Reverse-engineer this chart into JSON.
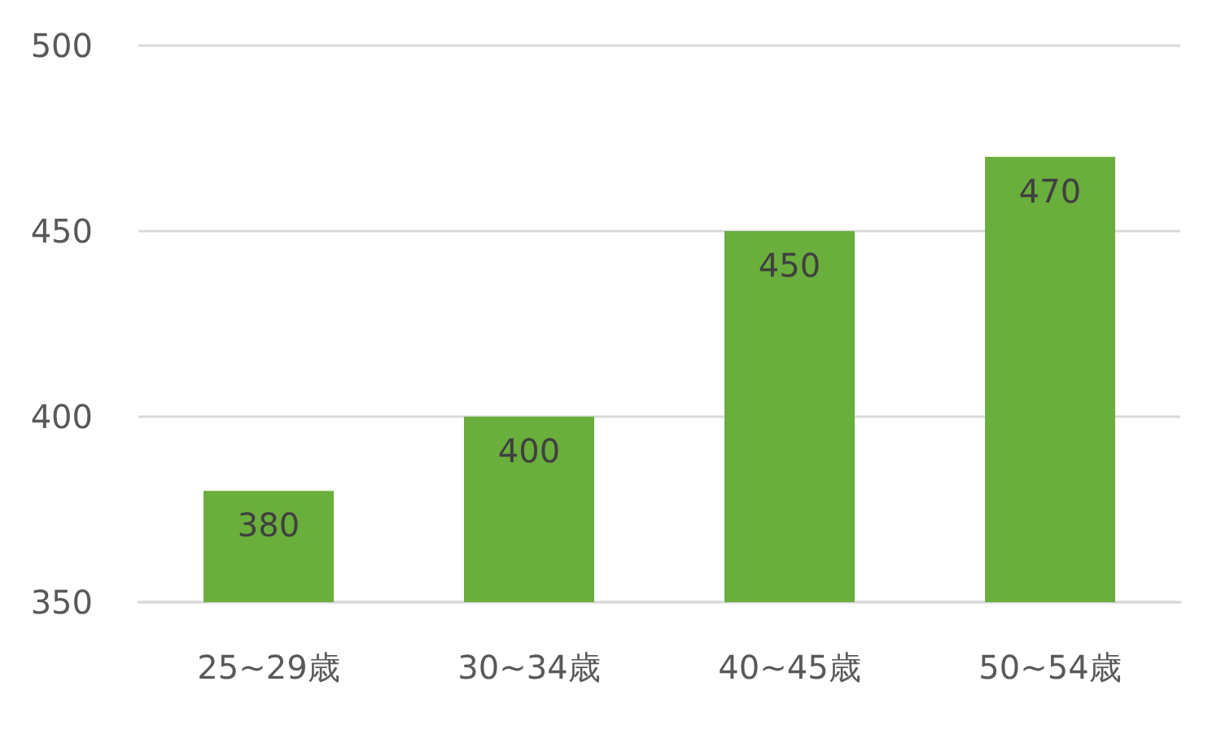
{
  "chart_data": {
    "type": "bar",
    "categories": [
      "25~29歳",
      "30~34歳",
      "40~45歳",
      "50~54歳"
    ],
    "values": [
      380,
      400,
      450,
      470
    ],
    "color": "#6aae3c",
    "ylim": [
      350,
      500
    ],
    "yticks": [
      350,
      400,
      450,
      500
    ],
    "grid": "y",
    "data_labels": true
  }
}
